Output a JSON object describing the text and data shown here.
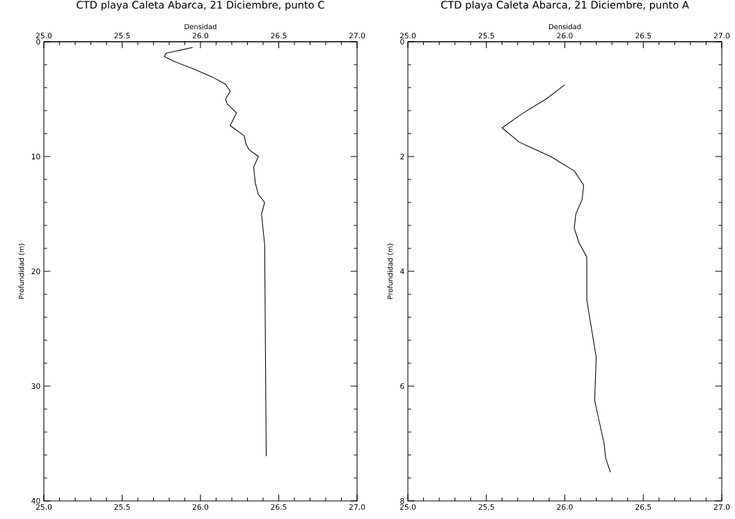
{
  "chart_data": [
    {
      "type": "line",
      "title": "CTD playa Caleta Abarca, 21 Diciembre, punto C",
      "x2label": "Densidad",
      "ylabel": "Profundidad (m)",
      "xlim": [
        25.0,
        27.0
      ],
      "xticks": [
        {
          "value": 25.0,
          "label": "25.0"
        },
        {
          "value": 25.5,
          "label": "25.5"
        },
        {
          "value": 26.0,
          "label": "26.0"
        },
        {
          "value": 26.5,
          "label": "26.5"
        },
        {
          "value": 27.0,
          "label": "27.0"
        }
      ],
      "x2lim": [
        25.0,
        27.0
      ],
      "x2ticks": [
        {
          "value": 25.0,
          "label": "25.0"
        },
        {
          "value": 25.5,
          "label": "25.5"
        },
        {
          "value": 26.0,
          "label": "26.0"
        },
        {
          "value": 26.5,
          "label": "26.5"
        },
        {
          "value": 27.0,
          "label": "27.0"
        }
      ],
      "ylim": [
        40,
        0
      ],
      "yticks": [
        0,
        10,
        20,
        30,
        40
      ],
      "tick_labels": "xy",
      "line_style": "solid",
      "series": [
        {
          "color": "#000000",
          "x": [
            25.95,
            25.78,
            25.77,
            25.83,
            25.96,
            26.08,
            26.16,
            26.19,
            26.16,
            26.17,
            26.23,
            26.19,
            26.28,
            26.29,
            26.31,
            26.37,
            26.34,
            26.35,
            26.37,
            26.41,
            26.39,
            26.41,
            26.42
          ],
          "values": [
            0.5,
            1.0,
            1.3,
            1.7,
            2.4,
            3.1,
            3.7,
            4.3,
            5.0,
            5.4,
            6.2,
            7.3,
            8.2,
            8.9,
            9.4,
            10.0,
            10.9,
            12.3,
            13.3,
            14.0,
            15.0,
            17.7,
            36.1
          ]
        }
      ]
    },
    {
      "type": "line",
      "title": "CTD playa Caleta Abarca, 21 Diciembre, punto A",
      "x2label": "Densidad",
      "ylabel": "Profundidad (m)",
      "xlim": [
        25.0,
        27.0
      ],
      "xticks": [
        {
          "value": 25.0,
          "label": "25.0"
        },
        {
          "value": 25.5,
          "label": "25.5"
        },
        {
          "value": 26.0,
          "label": "26.0"
        },
        {
          "value": 26.5,
          "label": "26.5"
        },
        {
          "value": 27.0,
          "label": "27.0"
        }
      ],
      "x2lim": [
        25.0,
        27.0
      ],
      "x2ticks": [
        {
          "value": 25.0,
          "label": "25.0"
        },
        {
          "value": 25.5,
          "label": "25.5"
        },
        {
          "value": 26.0,
          "label": "26.0"
        },
        {
          "value": 26.5,
          "label": "26.5"
        },
        {
          "value": 27.0,
          "label": "27.0"
        }
      ],
      "ylim": [
        8,
        0
      ],
      "yticks": [
        0,
        2,
        4,
        6,
        8
      ],
      "tick_labels": "xy",
      "line_style": "solid",
      "series": [
        {
          "color": "#000000",
          "x": [
            26.0,
            25.88,
            25.73,
            25.6,
            25.71,
            25.91,
            26.06,
            26.12,
            26.11,
            26.07,
            26.06,
            26.09,
            26.14,
            26.14,
            26.17,
            26.2,
            26.19,
            26.21,
            26.25,
            26.26,
            26.29
          ],
          "values": [
            0.75,
            1.0,
            1.25,
            1.5,
            1.75,
            2.0,
            2.25,
            2.5,
            2.75,
            3.0,
            3.25,
            3.5,
            3.75,
            4.5,
            5.0,
            5.5,
            6.25,
            6.5,
            7.0,
            7.25,
            7.5
          ]
        }
      ]
    }
  ]
}
